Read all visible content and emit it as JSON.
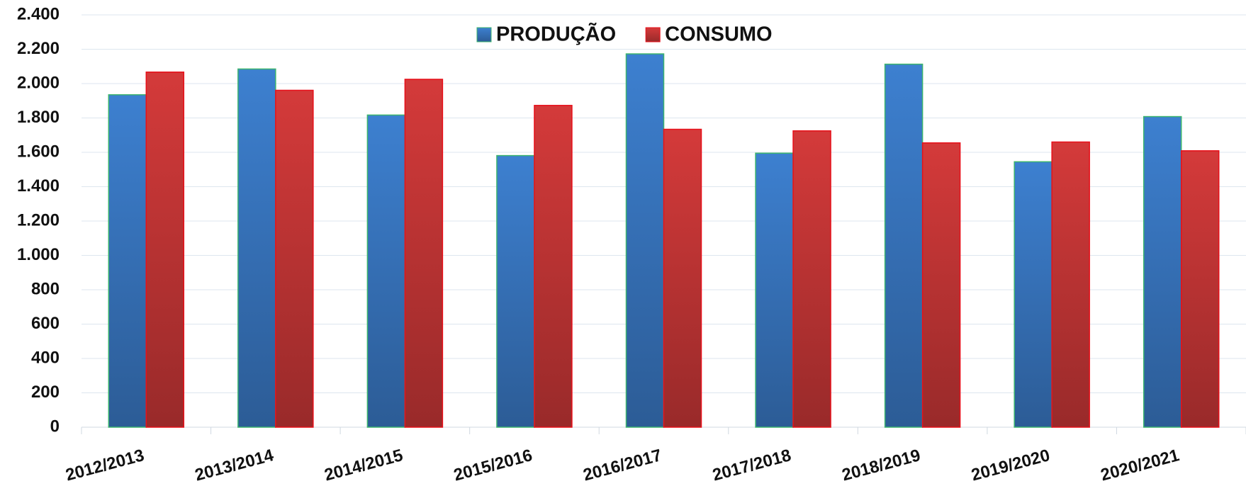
{
  "chart_data": {
    "type": "bar",
    "categories": [
      "2012/2013",
      "2013/2014",
      "2014/2015",
      "2015/2016",
      "2016/2017",
      "2017/2018",
      "2018/2019",
      "2019/2020",
      "2020/2021"
    ],
    "series": [
      {
        "name": "PRODUÇÃO",
        "color": "#3d80d0",
        "values": [
          1935,
          2085,
          1817,
          1581,
          2173,
          1595,
          2113,
          1545,
          1808
        ]
      },
      {
        "name": "CONSUMO",
        "color": "#d43a3a",
        "values": [
          2067,
          1961,
          2025,
          1873,
          1734,
          1725,
          1655,
          1660,
          1609
        ]
      }
    ],
    "ylim": [
      0,
      2400
    ],
    "yticks": [
      0,
      200,
      400,
      600,
      800,
      {
        "value": 1000,
        "label": "1.000"
      },
      {
        "value": 1200,
        "label": "1.200"
      },
      {
        "value": 1400,
        "label": "1.400"
      },
      {
        "value": 1600,
        "label": "1.600"
      },
      {
        "value": 1800,
        "label": "1.800"
      },
      {
        "value": 2000,
        "label": "2.000"
      },
      {
        "value": 2200,
        "label": "2.200"
      },
      {
        "value": 2400,
        "label": "2.400"
      }
    ],
    "grid": true,
    "legend": "top"
  }
}
